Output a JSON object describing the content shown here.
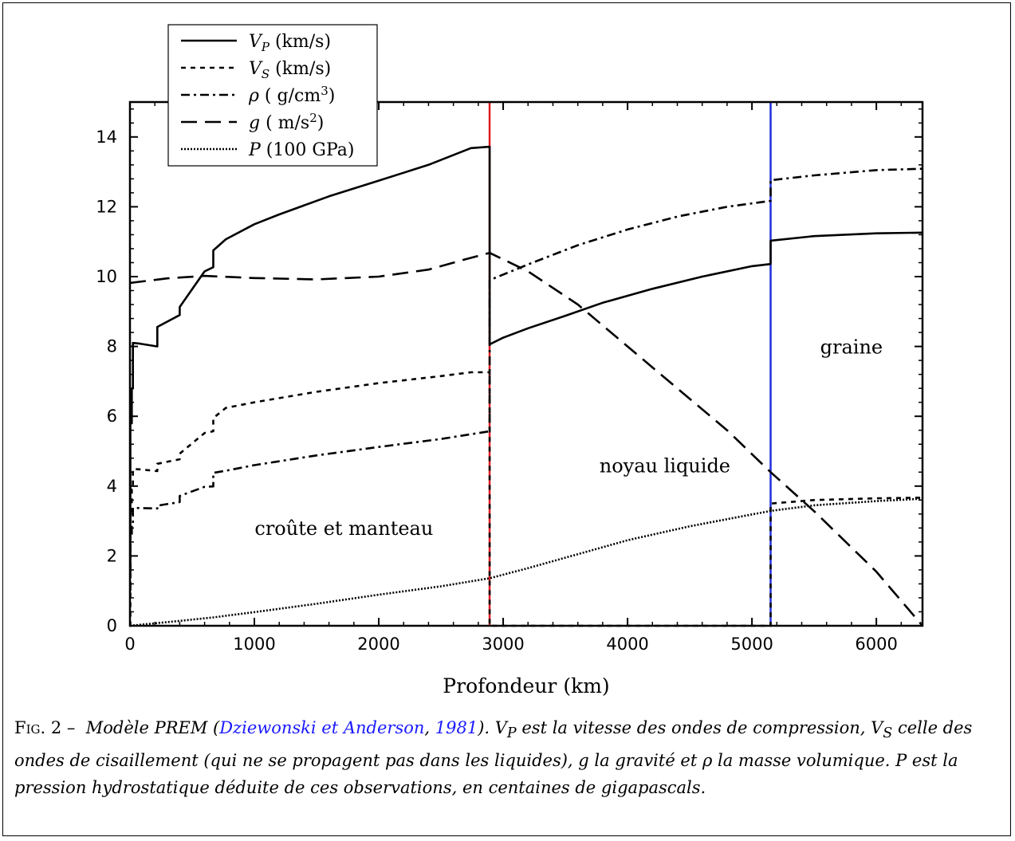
{
  "chart_data": {
    "type": "line",
    "xlabel": "Profondeur (km)",
    "xlim": [
      0,
      6371
    ],
    "ylim": [
      0,
      15
    ],
    "xticks": [
      "0",
      "1000",
      "2000",
      "3000",
      "4000",
      "5000",
      "6000"
    ],
    "xtick_values": [
      0,
      1000,
      2000,
      3000,
      4000,
      5000,
      6000
    ],
    "yticks": [
      "0",
      "2",
      "4",
      "6",
      "8",
      "10",
      "12",
      "14"
    ],
    "ytick_values": [
      0,
      2,
      4,
      6,
      8,
      10,
      12,
      14
    ],
    "boundaries": [
      {
        "x": 2891,
        "color": "#e0191f"
      },
      {
        "x": 5150,
        "color": "#1f2fdc"
      }
    ],
    "annotations": [
      {
        "text": "croûte et manteau",
        "x": 1720,
        "y": 2.6
      },
      {
        "text": "noyau liquide",
        "x": 4300,
        "y": 4.4
      },
      {
        "text": "graine",
        "x": 5800,
        "y": 7.8
      }
    ],
    "series": [
      {
        "name": "VP (km/s)",
        "dash": "solid",
        "x": [
          0,
          3,
          3,
          15,
          15,
          24,
          24,
          80,
          220,
          220,
          400,
          400,
          600,
          670,
          670,
          771,
          1000,
          1200,
          1600,
          2000,
          2400,
          2741,
          2891,
          2891,
          3000,
          3200,
          3500,
          3800,
          4200,
          4600,
          5000,
          5150,
          5150,
          5500,
          6000,
          6371
        ],
        "y": [
          1.45,
          1.45,
          5.8,
          5.8,
          6.8,
          6.8,
          8.1,
          8.08,
          8.0,
          8.56,
          8.9,
          9.13,
          10.15,
          10.27,
          10.75,
          11.07,
          11.5,
          11.78,
          12.3,
          12.75,
          13.2,
          13.68,
          13.72,
          8.06,
          8.25,
          8.52,
          8.88,
          9.25,
          9.65,
          10.0,
          10.3,
          10.36,
          11.03,
          11.16,
          11.24,
          11.26
        ]
      },
      {
        "name": "VS (km/s)",
        "dash": "6,6",
        "x": [
          0,
          3,
          3,
          15,
          15,
          24,
          24,
          80,
          220,
          220,
          400,
          400,
          600,
          670,
          670,
          771,
          1000,
          1500,
          2000,
          2500,
          2741,
          2891,
          2891,
          5150,
          5150,
          5500,
          6000,
          6371
        ],
        "y": [
          0,
          0,
          3.2,
          3.2,
          3.9,
          3.9,
          4.49,
          4.48,
          4.43,
          4.64,
          4.77,
          4.93,
          5.52,
          5.57,
          5.95,
          6.24,
          6.4,
          6.7,
          6.95,
          7.15,
          7.26,
          7.26,
          0,
          0,
          3.5,
          3.6,
          3.65,
          3.67
        ]
      },
      {
        "name": "ρ ( g/cm3)",
        "dash": "11,5,3,5",
        "x": [
          0,
          3,
          3,
          15,
          15,
          24,
          24,
          80,
          220,
          220,
          400,
          400,
          600,
          670,
          670,
          771,
          1000,
          1500,
          2000,
          2500,
          2891,
          2891,
          3200,
          3600,
          4000,
          4400,
          4800,
          5150,
          5150,
          5500,
          6000,
          6371
        ],
        "y": [
          1.02,
          1.02,
          2.6,
          2.6,
          2.9,
          2.9,
          3.38,
          3.37,
          3.36,
          3.44,
          3.54,
          3.72,
          3.98,
          3.99,
          4.38,
          4.44,
          4.6,
          4.88,
          5.12,
          5.35,
          5.57,
          9.9,
          10.35,
          10.9,
          11.35,
          11.72,
          12.0,
          12.17,
          12.76,
          12.9,
          13.05,
          13.09
        ]
      },
      {
        "name": "g ( m/s2)",
        "dash": "20,10",
        "x": [
          0,
          300,
          600,
          1000,
          1500,
          2000,
          2400,
          2700,
          2891,
          3200,
          3600,
          4000,
          4400,
          4800,
          5150,
          5500,
          6000,
          6371
        ],
        "y": [
          9.82,
          9.95,
          10.02,
          9.96,
          9.92,
          10.0,
          10.2,
          10.5,
          10.68,
          10.15,
          9.2,
          8.0,
          6.8,
          5.6,
          4.4,
          3.28,
          1.55,
          0
        ]
      },
      {
        "name": "P (100 GPa)",
        "dash": "2,2",
        "x": [
          0,
          200,
          400,
          670,
          1000,
          1500,
          2000,
          2500,
          2891,
          3200,
          3600,
          4000,
          4500,
          5150,
          5500,
          6000,
          6371
        ],
        "y": [
          0,
          0.07,
          0.14,
          0.24,
          0.39,
          0.63,
          0.89,
          1.13,
          1.36,
          1.65,
          2.05,
          2.45,
          2.85,
          3.29,
          3.45,
          3.57,
          3.64
        ]
      }
    ]
  },
  "legend_entries": [
    {
      "sym": "V",
      "sub": "P",
      "rest": " (km/s)"
    },
    {
      "sym": "V",
      "sub": "S",
      "rest": " (km/s)"
    },
    {
      "sym": "ρ",
      "pre": " ( g/cm",
      "sup": "3",
      "post": ")"
    },
    {
      "sym": "g",
      "pre": " ( m/s",
      "sup": "2",
      "post": ")"
    },
    {
      "sym": "P",
      "rest": " (100 GPa)"
    }
  ],
  "caption": {
    "fig_label": "Fig. 2 –",
    "text1": "Modèle PREM (",
    "link1": "Dziewonski et Anderson",
    "sep": ", ",
    "link2": "1981",
    "text2": "). ",
    "vp_sym": "V",
    "vp_sub": "P",
    "text3": " est la vitesse des ondes de compression, ",
    "vs_sym": "V",
    "vs_sub": "S",
    "text4": " celle des ondes de cisaillement (qui ne se propagent pas dans les liquides), g la gravité et ρ la masse volumique. P est la pression hydrostatique déduite de ces observations, en centaines de gigapascals."
  }
}
